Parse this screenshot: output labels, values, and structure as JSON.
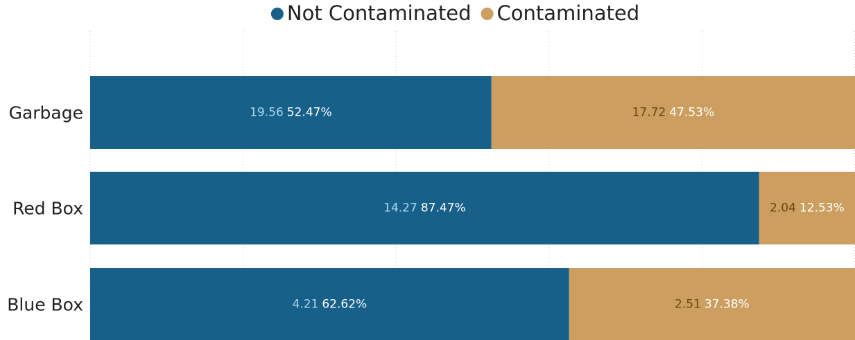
{
  "chart_data": {
    "type": "stacked-bar-100",
    "categories": [
      "Garbage",
      "Red Box",
      "Blue Box"
    ],
    "series": [
      {
        "name": "Not Contaminated",
        "color": "#17608a",
        "amount_color": "#a9d6ef",
        "amounts": [
          19.56,
          14.27,
          4.21
        ],
        "values": [
          52.47,
          87.47,
          62.62
        ],
        "value_labels": [
          "52.47%",
          "87.47%",
          "62.62%"
        ]
      },
      {
        "name": "Contaminated",
        "color": "#cc9f60",
        "amount_color": "#6b4610",
        "amounts": [
          17.72,
          2.04,
          2.51
        ],
        "values": [
          47.53,
          12.53,
          37.38
        ],
        "value_labels": [
          "47.53%",
          "12.53%",
          "37.38%"
        ]
      }
    ],
    "xlim": [
      0,
      100
    ],
    "xticks": [
      0,
      20,
      40,
      60,
      80,
      100
    ],
    "grid": true
  }
}
